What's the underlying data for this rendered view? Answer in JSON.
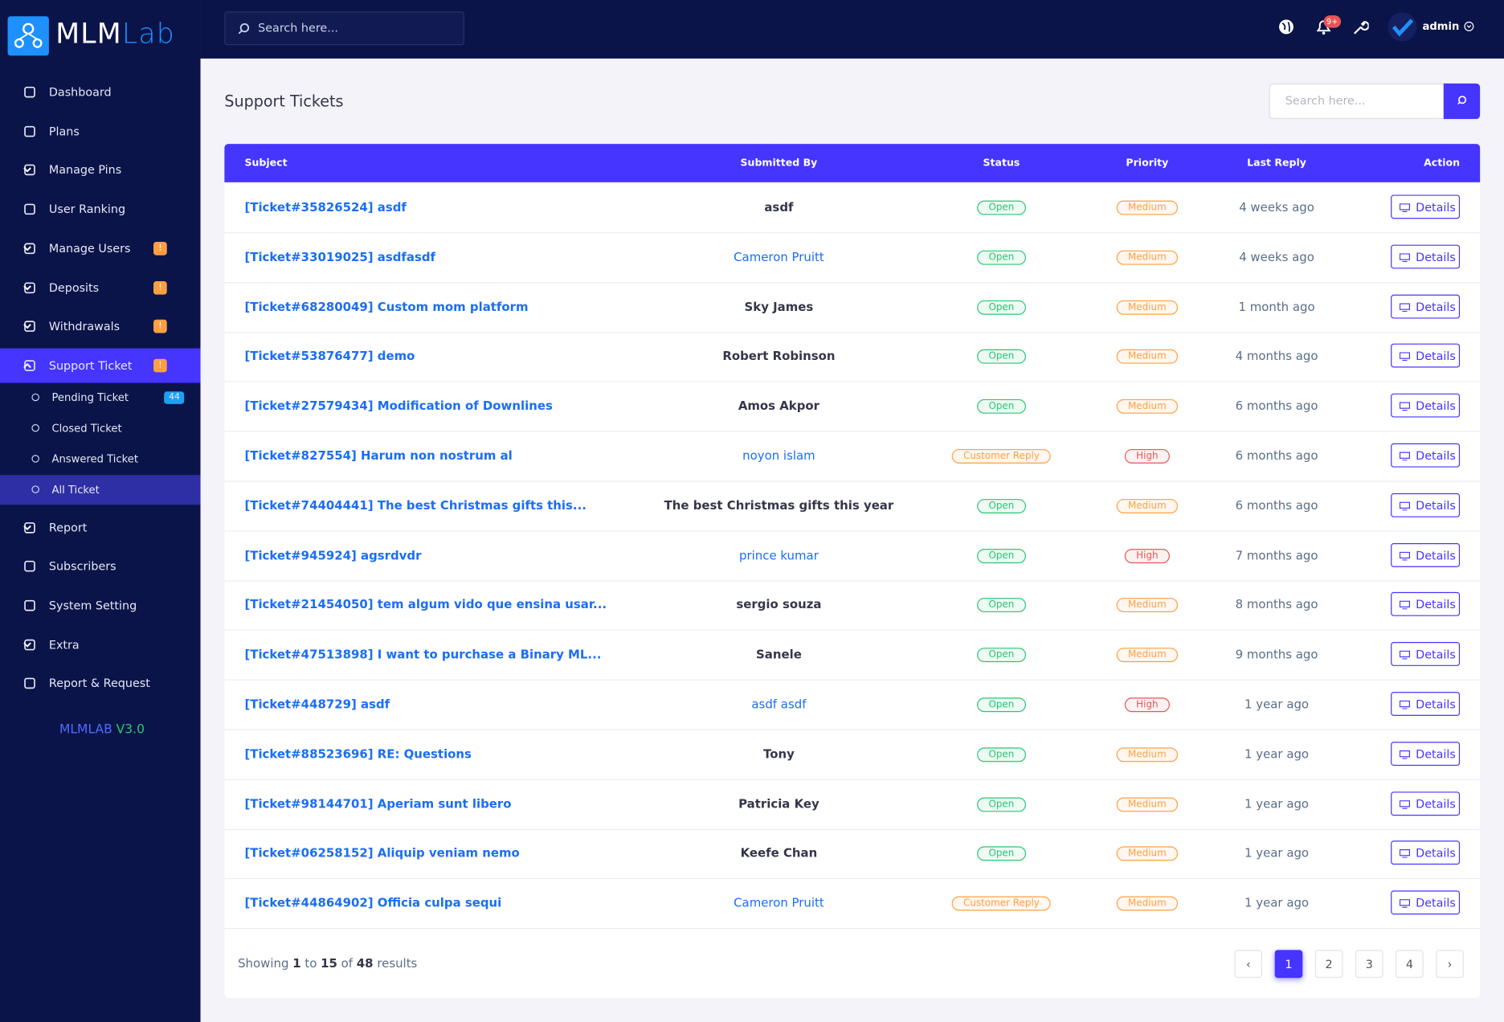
{
  "brand": {
    "part1": "MLM",
    "part2": "Lab"
  },
  "topbar": {
    "search_placeholder": "Search here...",
    "notification_badge": "9+",
    "user": "admin"
  },
  "sidebar": {
    "items": [
      {
        "label": "Dashboard"
      },
      {
        "label": "Plans"
      },
      {
        "label": "Manage Pins",
        "dropdown": true
      },
      {
        "label": "User Ranking"
      },
      {
        "label": "Manage Users",
        "badge": "!",
        "dropdown": true
      },
      {
        "label": "Deposits",
        "badge": "!",
        "dropdown": true
      },
      {
        "label": "Withdrawals",
        "badge": "!",
        "dropdown": true
      },
      {
        "label": "Support Ticket",
        "badge": "!",
        "dropdown": true,
        "active": true,
        "submenu": [
          {
            "label": "Pending Ticket",
            "badge": "44"
          },
          {
            "label": "Closed Ticket"
          },
          {
            "label": "Answered Ticket"
          },
          {
            "label": "All Ticket",
            "active": true
          }
        ]
      },
      {
        "label": "Report",
        "dropdown": true
      },
      {
        "label": "Subscribers"
      },
      {
        "label": "System Setting"
      },
      {
        "label": "Extra",
        "dropdown": true
      },
      {
        "label": "Report & Request"
      }
    ],
    "version_name": "MLMLAB",
    "version": "V3.0"
  },
  "page": {
    "title": "Support Tickets",
    "search_placeholder": "Search here..."
  },
  "table": {
    "headers": [
      "Subject",
      "Submitted By",
      "Status",
      "Priority",
      "Last Reply",
      "Action"
    ],
    "rows": [
      {
        "subject": "[Ticket#35826524] asdf",
        "by": "asdf",
        "by_link": false,
        "status": "Open",
        "priority": "Medium",
        "last_reply": "4 weeks ago",
        "action": "Details"
      },
      {
        "subject": "[Ticket#33019025] asdfasdf",
        "by": "Cameron Pruitt",
        "by_link": true,
        "status": "Open",
        "priority": "Medium",
        "last_reply": "4 weeks ago",
        "action": "Details"
      },
      {
        "subject": "[Ticket#68280049] Custom mom platform",
        "by": "Sky James",
        "by_link": false,
        "status": "Open",
        "priority": "Medium",
        "last_reply": "1 month ago",
        "action": "Details"
      },
      {
        "subject": "[Ticket#53876477] demo",
        "by": "Robert Robinson",
        "by_link": false,
        "status": "Open",
        "priority": "Medium",
        "last_reply": "4 months ago",
        "action": "Details"
      },
      {
        "subject": "[Ticket#27579434] Modification of Downlines",
        "by": "Amos Akpor",
        "by_link": false,
        "status": "Open",
        "priority": "Medium",
        "last_reply": "6 months ago",
        "action": "Details"
      },
      {
        "subject": "[Ticket#827554] Harum non nostrum al",
        "by": "noyon islam",
        "by_link": true,
        "status": "Customer Reply",
        "priority": "High",
        "last_reply": "6 months ago",
        "action": "Details"
      },
      {
        "subject": "[Ticket#74404441] The best Christmas gifts this...",
        "by": "The best Christmas gifts this year",
        "by_link": false,
        "status": "Open",
        "priority": "Medium",
        "last_reply": "6 months ago",
        "action": "Details"
      },
      {
        "subject": "[Ticket#945924] agsrdvdr",
        "by": "prince kumar",
        "by_link": true,
        "status": "Open",
        "priority": "High",
        "last_reply": "7 months ago",
        "action": "Details"
      },
      {
        "subject": "[Ticket#21454050] tem algum vido que ensina usar...",
        "by": "sergio souza",
        "by_link": false,
        "status": "Open",
        "priority": "Medium",
        "last_reply": "8 months ago",
        "action": "Details"
      },
      {
        "subject": "[Ticket#47513898] I want to purchase a Binary ML...",
        "by": "Sanele",
        "by_link": false,
        "status": "Open",
        "priority": "Medium",
        "last_reply": "9 months ago",
        "action": "Details"
      },
      {
        "subject": "[Ticket#448729] asdf",
        "by": "asdf asdf",
        "by_link": true,
        "status": "Open",
        "priority": "High",
        "last_reply": "1 year ago",
        "action": "Details"
      },
      {
        "subject": "[Ticket#88523696] RE: Questions",
        "by": "Tony",
        "by_link": false,
        "status": "Open",
        "priority": "Medium",
        "last_reply": "1 year ago",
        "action": "Details"
      },
      {
        "subject": "[Ticket#98144701] Aperiam sunt libero",
        "by": "Patricia Key",
        "by_link": false,
        "status": "Open",
        "priority": "Medium",
        "last_reply": "1 year ago",
        "action": "Details"
      },
      {
        "subject": "[Ticket#06258152] Aliquip veniam nemo",
        "by": "Keefe Chan",
        "by_link": false,
        "status": "Open",
        "priority": "Medium",
        "last_reply": "1 year ago",
        "action": "Details"
      },
      {
        "subject": "[Ticket#44864902] Officia culpa sequi",
        "by": "Cameron Pruitt",
        "by_link": true,
        "status": "Customer Reply",
        "priority": "Medium",
        "last_reply": "1 year ago",
        "action": "Details"
      }
    ]
  },
  "footer": {
    "showing": [
      "Showing",
      "1",
      "to",
      "15",
      "of",
      "48",
      "results"
    ],
    "pages": [
      "‹",
      "1",
      "2",
      "3",
      "4",
      "›"
    ],
    "current_page": "1"
  }
}
